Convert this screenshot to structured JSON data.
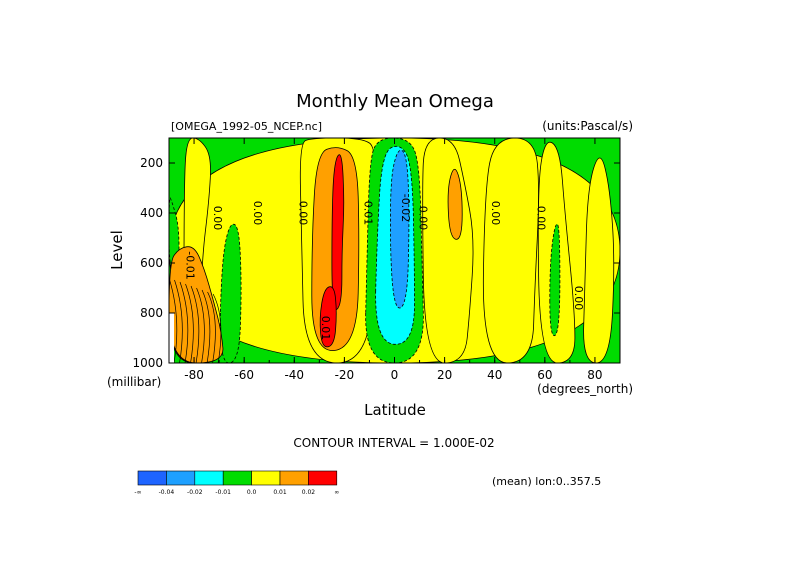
{
  "chart_data": {
    "type": "heatmap",
    "title": "Monthly Mean Omega",
    "subtitle_left": "[OMEGA_1992-05_NCEP.nc]",
    "subtitle_right": "(units:Pascal/s)",
    "xlabel": "Latitude",
    "x_units": "(degrees_north)",
    "ylabel": "Level",
    "y_units": "(millibar)",
    "xlim": [
      -90,
      90
    ],
    "ylim": [
      1000,
      100
    ],
    "x_ticks": [
      -80,
      -60,
      -40,
      -20,
      0,
      20,
      40,
      60,
      80
    ],
    "y_ticks": [
      200,
      400,
      600,
      800,
      1000
    ],
    "contour_interval_text": "CONTOUR INTERVAL = 1.000E-02",
    "mean_text": "(mean) lon:0..357.5",
    "levels": [
      -0.04,
      -0.02,
      -0.01,
      0.0,
      0.01,
      0.02
    ],
    "legend": {
      "colors": [
        "#1e64ff",
        "#1ea0ff",
        "#00ffff",
        "#00dc00",
        "#ffff00",
        "#ffa000",
        "#ff0000"
      ],
      "labels": [
        "-∞",
        "-0.04",
        "-0.02",
        "-0.01",
        "0.0",
        "0.01",
        "0.02",
        "∞"
      ]
    },
    "contour_labels": [
      {
        "text": "0.00",
        "x": -72,
        "y": 420
      },
      {
        "text": "-0.01",
        "x": -83,
        "y": 610
      },
      {
        "text": "0.00",
        "x": -56,
        "y": 400
      },
      {
        "text": "0.00",
        "x": -38,
        "y": 400
      },
      {
        "text": "0.01",
        "x": -12,
        "y": 400
      },
      {
        "text": "-0.02",
        "x": 3,
        "y": 380
      },
      {
        "text": "0.00",
        "x": 10,
        "y": 420
      },
      {
        "text": "0.00",
        "x": 39,
        "y": 400
      },
      {
        "text": "0.00",
        "x": 57,
        "y": 420
      },
      {
        "text": "0.01",
        "x": -29,
        "y": 860
      },
      {
        "text": "0.00",
        "x": 72,
        "y": 740
      }
    ],
    "regions": [
      {
        "value": 0.0,
        "band": [
          [
            -90,
            1000
          ],
          [
            90,
            1000
          ],
          [
            90,
            100
          ],
          [
            -90,
            100
          ]
        ]
      },
      {
        "value": 0.005,
        "band": [
          [
            -84,
            1000
          ],
          [
            -78,
            1000
          ],
          [
            -77,
            600
          ],
          [
            -74,
            350
          ],
          [
            -73,
            170
          ],
          [
            -78,
            100
          ],
          [
            -83,
            100
          ],
          [
            -84,
            300
          ]
        ]
      },
      {
        "value": 0.005,
        "band": [
          [
            -36,
            1000
          ],
          [
            -10,
            1000
          ],
          [
            -8,
            500
          ],
          [
            -7,
            140
          ],
          [
            -13,
            100
          ],
          [
            -33,
            100
          ],
          [
            -38,
            120
          ],
          [
            -37,
            500
          ]
        ]
      },
      {
        "value": 0.015,
        "band": [
          [
            -33,
            960
          ],
          [
            -15,
            940
          ],
          [
            -14,
            500
          ],
          [
            -15,
            170
          ],
          [
            -23,
            130
          ],
          [
            -31,
            160
          ],
          [
            -33,
            500
          ]
        ]
      },
      {
        "value": 0.025,
        "band": [
          [
            -25,
            800
          ],
          [
            -21,
            770
          ],
          [
            -21,
            550
          ],
          [
            -20,
            360
          ],
          [
            -21,
            150
          ],
          [
            -24,
            190
          ],
          [
            -25,
            400
          ]
        ]
      },
      {
        "value": 0.025,
        "band": [
          [
            -29,
            940
          ],
          [
            -24,
            930
          ],
          [
            -23,
            800
          ],
          [
            -24,
            690
          ],
          [
            -28,
            700
          ],
          [
            -30,
            820
          ]
        ]
      },
      {
        "value": -0.005,
        "band": [
          [
            -12,
            1000
          ],
          [
            12,
            1000
          ],
          [
            11,
            600
          ],
          [
            10,
            200
          ],
          [
            6,
            100
          ],
          [
            -7,
            100
          ],
          [
            -10,
            200
          ],
          [
            -11,
            600
          ]
        ]
      },
      {
        "value": -0.015,
        "band": [
          [
            -8,
            920
          ],
          [
            8,
            930
          ],
          [
            8,
            600
          ],
          [
            7,
            200
          ],
          [
            2,
            120
          ],
          [
            -5,
            160
          ],
          [
            -7,
            500
          ]
        ]
      },
      {
        "value": -0.025,
        "band": [
          [
            -1,
            780
          ],
          [
            5,
            780
          ],
          [
            6,
            420
          ],
          [
            5,
            160
          ],
          [
            1,
            140
          ],
          [
            -2,
            300
          ]
        ]
      },
      {
        "value": 0.005,
        "band": [
          [
            12,
            1000
          ],
          [
            28,
            1000
          ],
          [
            30,
            800
          ],
          [
            32,
            500
          ],
          [
            28,
            280
          ],
          [
            24,
            100
          ],
          [
            12,
            100
          ],
          [
            11,
            300
          ]
        ]
      },
      {
        "value": 0.015,
        "band": [
          [
            22,
            500
          ],
          [
            27,
            510
          ],
          [
            27,
            300
          ],
          [
            24,
            200
          ],
          [
            21,
            300
          ]
        ]
      },
      {
        "value": 0.005,
        "band": [
          [
            35,
            1000
          ],
          [
            55,
            1000
          ],
          [
            56,
            700
          ],
          [
            58,
            300
          ],
          [
            56,
            100
          ],
          [
            40,
            100
          ],
          [
            36,
            300
          ]
        ]
      },
      {
        "value": 0.005,
        "band": [
          [
            58,
            1000
          ],
          [
            72,
            1000
          ],
          [
            72,
            800
          ],
          [
            68,
            400
          ],
          [
            66,
            140
          ],
          [
            60,
            100
          ],
          [
            57,
            300
          ]
        ]
      },
      {
        "value": 0.005,
        "band": [
          [
            75,
            1000
          ],
          [
            86,
            1000
          ],
          [
            88,
            600
          ],
          [
            86,
            300
          ],
          [
            82,
            140
          ],
          [
            77,
            300
          ],
          [
            76,
            700
          ]
        ]
      },
      {
        "value": -0.005,
        "band": [
          [
            -70,
            1000
          ],
          [
            -62,
            1000
          ],
          [
            -61,
            700
          ],
          [
            -62,
            450
          ],
          [
            -66,
            440
          ],
          [
            -69,
            600
          ]
        ]
      },
      {
        "value": -0.005,
        "band": [
          [
            -90,
            640
          ],
          [
            -86,
            620
          ],
          [
            -86,
            450
          ],
          [
            -89,
            350
          ],
          [
            -90,
            330
          ]
        ]
      },
      {
        "value": -0.005,
        "band": [
          [
            62,
            900
          ],
          [
            66,
            880
          ],
          [
            66,
            450
          ],
          [
            64,
            440
          ],
          [
            62,
            600
          ]
        ]
      },
      {
        "value": 0.025,
        "band": [
          [
            -90,
            1000
          ],
          [
            -70,
            1000
          ],
          [
            -73,
            860
          ],
          [
            -76,
            740
          ],
          [
            -80,
            580
          ],
          [
            -85,
            560
          ],
          [
            -90,
            620
          ]
        ]
      },
      {
        "value": 0.015,
        "band": [
          [
            -90,
            1000
          ],
          [
            -68,
            1000
          ],
          [
            -69,
            880
          ],
          [
            -72,
            760
          ],
          [
            -76,
            620
          ],
          [
            -80,
            530
          ],
          [
            -86,
            540
          ],
          [
            -90,
            600
          ]
        ]
      }
    ]
  }
}
